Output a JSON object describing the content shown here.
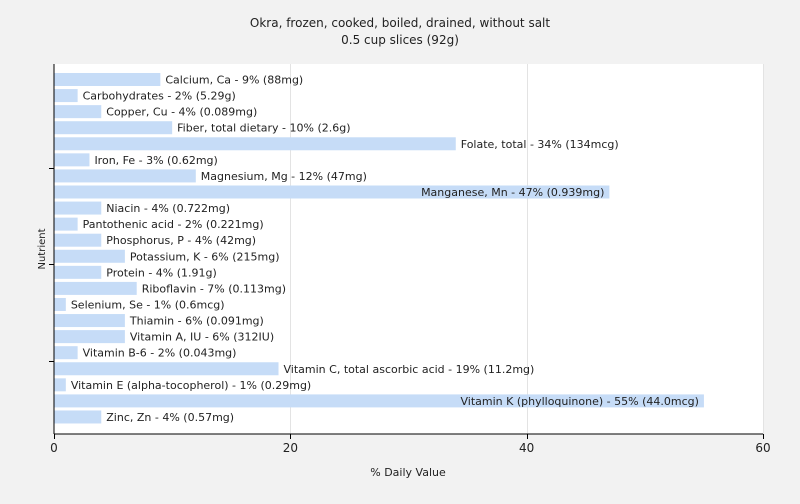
{
  "chart_data": {
    "type": "bar",
    "orientation": "horizontal",
    "title": "Okra, frozen, cooked, boiled, drained, without salt",
    "subtitle": "0.5 cup slices (92g)",
    "xlabel": "% Daily Value",
    "ylabel": "Nutrient",
    "xlim": [
      0,
      60
    ],
    "xticks": [
      "0",
      "20",
      "40",
      "60"
    ],
    "grid": true,
    "colors": {
      "bar": "#c6dcf7",
      "background": "#f2f2f2",
      "plot_background": "#ffffff",
      "grid": "#e3e3e3"
    },
    "categories": [
      "Calcium, Ca",
      "Carbohydrates",
      "Copper, Cu",
      "Fiber, total dietary",
      "Folate, total",
      "Iron, Fe",
      "Magnesium, Mg",
      "Manganese, Mn",
      "Niacin",
      "Pantothenic acid",
      "Phosphorus, P",
      "Potassium, K",
      "Protein",
      "Riboflavin",
      "Selenium, Se",
      "Thiamin",
      "Vitamin A, IU",
      "Vitamin B-6",
      "Vitamin C, total ascorbic acid",
      "Vitamin E (alpha-tocopherol)",
      "Vitamin K (phylloquinone)",
      "Zinc, Zn"
    ],
    "values": [
      9,
      2,
      4,
      10,
      34,
      3,
      12,
      47,
      4,
      2,
      4,
      6,
      4,
      7,
      1,
      6,
      6,
      2,
      19,
      1,
      55,
      4
    ],
    "labels": [
      "Calcium, Ca - 9% (88mg)",
      "Carbohydrates - 2% (5.29g)",
      "Copper, Cu - 4% (0.089mg)",
      "Fiber, total dietary - 10% (2.6g)",
      "Folate, total - 34% (134mcg)",
      "Iron, Fe - 3% (0.62mg)",
      "Magnesium, Mg - 12% (47mg)",
      "Manganese, Mn - 47% (0.939mg)",
      "Niacin - 4% (0.722mg)",
      "Pantothenic acid - 2% (0.221mg)",
      "Phosphorus, P - 4% (42mg)",
      "Potassium, K - 6% (215mg)",
      "Protein - 4% (1.91g)",
      "Riboflavin - 7% (0.113mg)",
      "Selenium, Se - 1% (0.6mcg)",
      "Thiamin - 6% (0.091mg)",
      "Vitamin A, IU - 6% (312IU)",
      "Vitamin B-6 - 2% (0.043mg)",
      "Vitamin C, total ascorbic acid - 19% (11.2mg)",
      "Vitamin E (alpha-tocopherol) - 1% (0.29mg)",
      "Vitamin K (phylloquinone) - 55% (44.0mcg)",
      "Zinc, Zn - 4% (0.57mg)"
    ]
  }
}
